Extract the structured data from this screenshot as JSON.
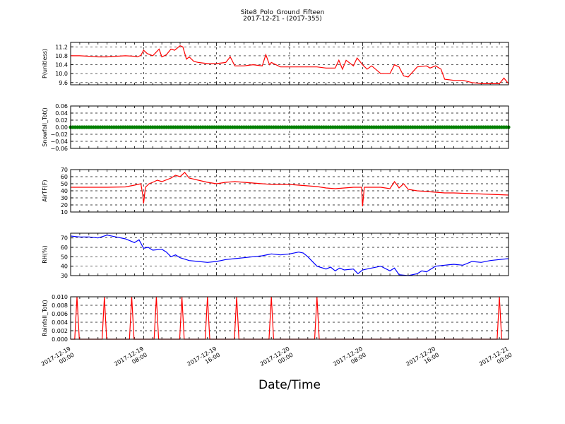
{
  "title": "Site8_Polo_Ground_Fifteen",
  "subtitle": "2017-12-21 - (2017-355)",
  "xlabel": "Date/Time",
  "x_ticks": [
    {
      "line1": "2017-12-19",
      "line2": "00:00"
    },
    {
      "line1": "2017-12-19",
      "line2": "08:00"
    },
    {
      "line1": "2017-12-19",
      "line2": "16:00"
    },
    {
      "line1": "2017-12-20",
      "line2": "00:00"
    },
    {
      "line1": "2017-12-20",
      "line2": "08:00"
    },
    {
      "line1": "2017-12-20",
      "line2": "16:00"
    },
    {
      "line1": "2017-12-21",
      "line2": "00:00"
    }
  ],
  "chart_data": [
    {
      "type": "line",
      "ylabel": "P(unitless)",
      "color": "#ff0000",
      "ylim": [
        9.5,
        11.4
      ],
      "yticks": [
        9.6,
        10.0,
        10.4,
        10.8,
        11.2
      ],
      "ytick_labels": [
        "9.6",
        "10.0",
        "10.4",
        "10.8",
        "11.2"
      ],
      "grid": true,
      "x_hours": [
        0,
        1,
        2,
        3,
        4,
        5,
        6,
        7,
        7.3,
        7.7,
        8,
        8.4,
        9,
        9.7,
        10,
        10.5,
        11,
        11.4,
        12,
        12.3,
        12.7,
        13,
        13.5,
        14,
        15,
        16,
        17,
        17.5,
        18,
        19,
        20,
        21,
        21.4,
        21.8,
        22,
        23,
        24,
        25,
        26,
        27,
        28,
        29,
        29.4,
        29.8,
        30.2,
        31,
        31.4,
        31.7,
        32,
        32.5,
        33,
        34,
        35,
        35.5,
        36,
        36.5,
        37,
        38,
        39,
        39.4,
        40,
        40.6,
        41,
        42,
        43,
        44,
        45,
        46,
        47,
        47.5,
        48
      ],
      "values": [
        10.8,
        10.8,
        10.78,
        10.75,
        10.75,
        10.78,
        10.8,
        10.78,
        10.75,
        10.82,
        11.05,
        10.9,
        10.8,
        11.1,
        10.75,
        10.85,
        11.1,
        11.05,
        11.25,
        11.2,
        10.65,
        10.75,
        10.55,
        10.5,
        10.45,
        10.45,
        10.5,
        10.75,
        10.35,
        10.35,
        10.4,
        10.35,
        10.85,
        10.4,
        10.5,
        10.3,
        10.3,
        10.3,
        10.3,
        10.3,
        10.25,
        10.25,
        10.6,
        10.2,
        10.6,
        10.35,
        10.7,
        10.55,
        10.4,
        10.2,
        10.35,
        10.0,
        10.0,
        10.4,
        10.3,
        9.9,
        9.85,
        10.3,
        10.35,
        10.25,
        10.35,
        10.2,
        9.75,
        9.7,
        9.7,
        9.6,
        9.55,
        9.55,
        9.55,
        9.8,
        9.55
      ]
    },
    {
      "type": "line",
      "ylabel": "Snowfall_Tot()",
      "color": "#008000",
      "marker": "dot",
      "ylim": [
        -0.06,
        0.06
      ],
      "yticks": [
        -0.06,
        -0.04,
        -0.02,
        0.0,
        0.02,
        0.04,
        0.06
      ],
      "ytick_labels": [
        "−0.06",
        "−0.04",
        "−0.02",
        "0.00",
        "0.02",
        "0.04",
        "0.06"
      ],
      "grid": true,
      "x_hours_start": 0,
      "x_hours_end": 48,
      "constant_value": 0.0
    },
    {
      "type": "line",
      "ylabel": "AirTF(F)",
      "color": "#ff0000",
      "ylim": [
        10,
        70
      ],
      "yticks": [
        10,
        20,
        30,
        40,
        50,
        60,
        70
      ],
      "ytick_labels": [
        "10",
        "20",
        "30",
        "40",
        "50",
        "60",
        "70"
      ],
      "grid": true,
      "x_hours": [
        0,
        2,
        4,
        6,
        7,
        7.7,
        7.9,
        8,
        8.2,
        8.6,
        9,
        9.5,
        10,
        11,
        11.5,
        12,
        12.5,
        13,
        14,
        15,
        16,
        17,
        18,
        19,
        20,
        21,
        22,
        23,
        24,
        25,
        26,
        27,
        28,
        29,
        30,
        31,
        31.9,
        32,
        32.2,
        33,
        34,
        35,
        35.5,
        35.8,
        36,
        36.5,
        37,
        38,
        39,
        40,
        41,
        42,
        44,
        46,
        48
      ],
      "values": [
        45,
        45,
        45,
        45.5,
        48,
        50,
        35,
        22,
        45,
        50,
        52,
        55,
        53,
        58,
        62,
        60,
        66,
        58,
        55,
        52,
        50,
        52,
        53,
        52,
        51,
        50,
        49,
        49,
        49,
        48,
        47,
        46,
        44,
        43,
        44,
        45,
        45,
        18,
        45,
        45,
        45,
        43,
        53,
        48,
        44,
        50,
        42,
        40,
        39,
        38,
        37,
        37,
        36,
        35,
        34
      ]
    },
    {
      "type": "line",
      "ylabel": "RH(%)",
      "color": "#0000ff",
      "ylim": [
        30,
        75
      ],
      "yticks": [
        30,
        40,
        50,
        60,
        70
      ],
      "ytick_labels": [
        "30",
        "40",
        "50",
        "60",
        "70"
      ],
      "grid": true,
      "x_hours": [
        0,
        1,
        2,
        3,
        4,
        5,
        6,
        7,
        7.5,
        8,
        8.5,
        9,
        10,
        10.5,
        11,
        11.5,
        12,
        13,
        14,
        15,
        16,
        17,
        18,
        19,
        20,
        21,
        22,
        23,
        24,
        25,
        25.5,
        26,
        27,
        28,
        28.5,
        29,
        29.5,
        30,
        31,
        31.5,
        32,
        33,
        34,
        35,
        35.5,
        36,
        37,
        38,
        38.5,
        39,
        40,
        41,
        42,
        43,
        44,
        45,
        46,
        47,
        48
      ],
      "values": [
        72,
        71,
        71,
        70,
        73,
        71,
        69,
        65,
        68,
        59,
        60,
        57,
        58,
        55,
        50,
        52,
        49,
        46,
        45,
        44,
        45,
        47,
        48,
        49,
        50,
        51,
        53,
        52,
        53,
        55,
        54,
        50,
        40,
        37,
        39,
        35,
        38,
        36,
        37,
        32,
        36,
        38,
        40,
        35,
        38,
        31,
        30,
        32,
        35,
        34,
        40,
        41,
        42,
        41,
        45,
        44,
        46,
        47,
        48
      ]
    },
    {
      "type": "line",
      "ylabel": "Rainfall_Tot()",
      "color": "#ff0000",
      "ylim": [
        0.0,
        0.01
      ],
      "yticks": [
        0.0,
        0.002,
        0.004,
        0.006,
        0.008,
        0.01
      ],
      "ytick_labels": [
        "0.000",
        "0.002",
        "0.004",
        "0.006",
        "0.008",
        "0.010"
      ],
      "grid": true,
      "spike_hours": [
        0.7,
        3.7,
        6.7,
        9.4,
        12.2,
        15.0,
        18.2,
        22.0,
        27.0,
        47.0
      ],
      "spike_value": 0.01,
      "x_hours_start": 0,
      "x_hours_end": 48
    }
  ]
}
